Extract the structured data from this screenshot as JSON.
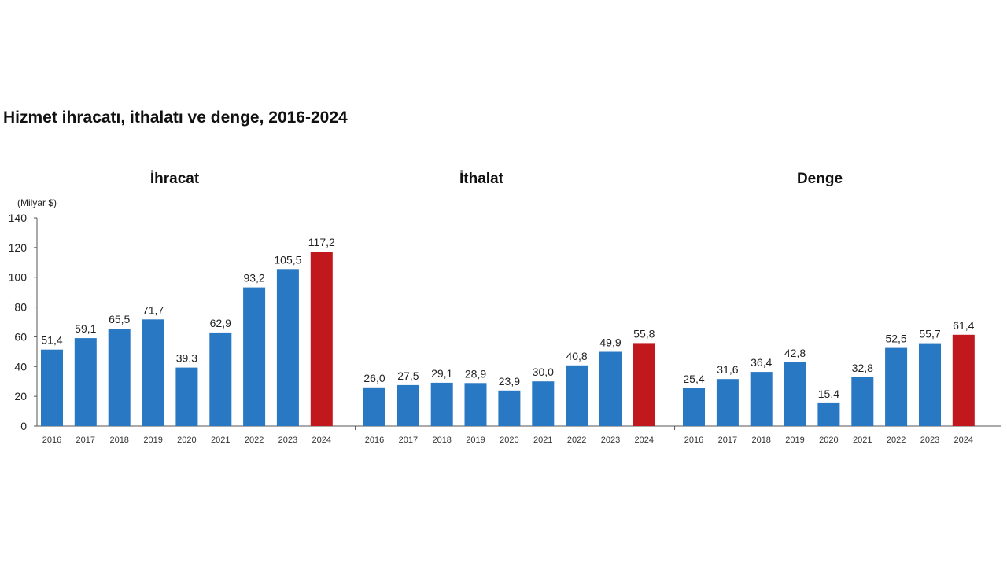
{
  "title": "Hizmet ihracatı, ithalatı ve denge, 2016-2024",
  "colors": {
    "bar": "#2878c4",
    "highlight": "#c0181d",
    "axis": "#555555"
  },
  "chart_data": {
    "type": "bar",
    "unit_label": "(Milyar $)",
    "ylim": [
      0,
      140
    ],
    "yticks": [
      0,
      20,
      40,
      60,
      80,
      100,
      120,
      140
    ],
    "grid": false,
    "highlight_category": "2024",
    "categories": [
      "2016",
      "2017",
      "2018",
      "2019",
      "2020",
      "2021",
      "2022",
      "2023",
      "2024"
    ],
    "panels": [
      {
        "name": "İhracat",
        "values": [
          51.4,
          59.1,
          65.5,
          71.7,
          39.3,
          62.9,
          93.2,
          105.5,
          117.2
        ],
        "labels": [
          "51,4",
          "59,1",
          "65,5",
          "71,7",
          "39,3",
          "62,9",
          "93,2",
          "105,5",
          "117,2"
        ]
      },
      {
        "name": "İthalat",
        "values": [
          26.0,
          27.5,
          29.1,
          28.9,
          23.9,
          30.0,
          40.8,
          49.9,
          55.8
        ],
        "labels": [
          "26,0",
          "27,5",
          "29,1",
          "28,9",
          "23,9",
          "30,0",
          "40,8",
          "49,9",
          "55,8"
        ]
      },
      {
        "name": "Denge",
        "values": [
          25.4,
          31.6,
          36.4,
          42.8,
          15.4,
          32.8,
          52.5,
          55.7,
          61.4
        ],
        "labels": [
          "25,4",
          "31,6",
          "36,4",
          "42,8",
          "15,4",
          "32,8",
          "52,5",
          "55,7",
          "61,4"
        ]
      }
    ]
  }
}
